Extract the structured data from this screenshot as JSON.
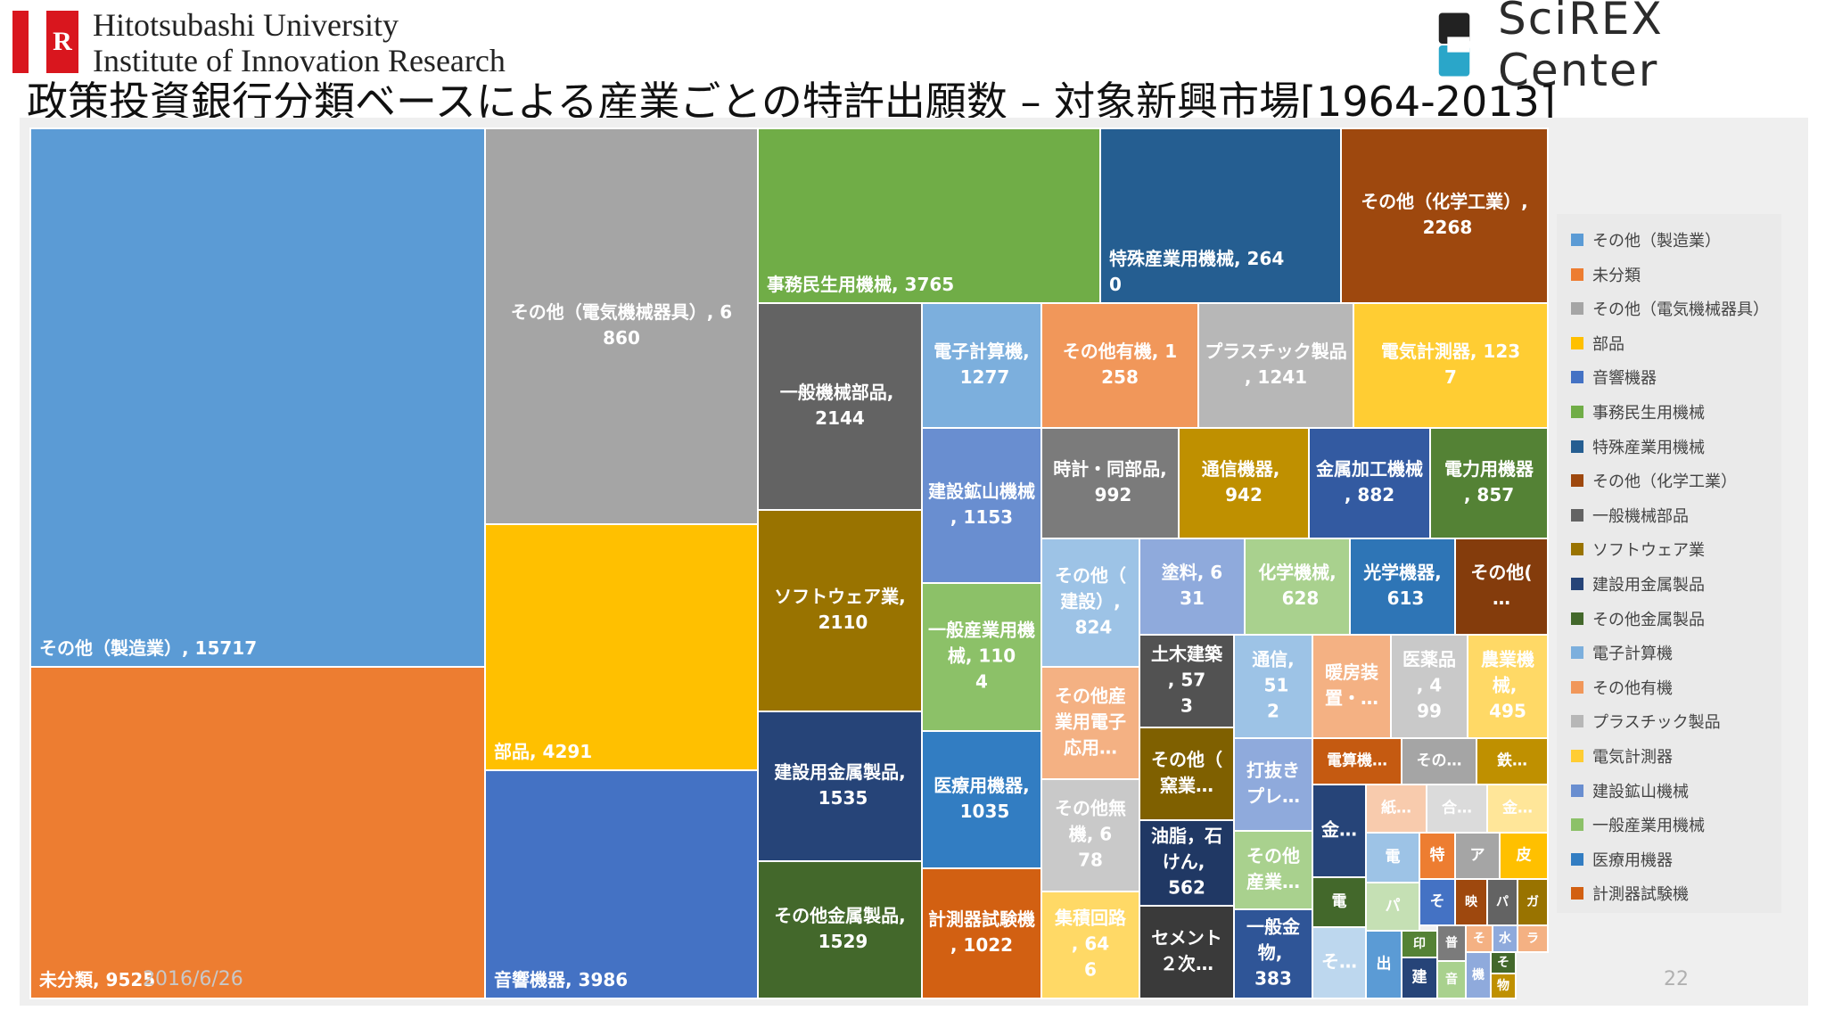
{
  "header": {
    "university_line1": "Hitotsubashi University",
    "university_line2": "Institute of Innovation Research",
    "center_name": "SciREX Center",
    "logo_letter": "R"
  },
  "slide": {
    "title": "政策投資銀行分類ベースによる産業ごとの特許出願数 – 対象新興市場[1964-2013]",
    "date": "2016/6/26",
    "page_number": "22"
  },
  "colors": {
    "background": "#efefef",
    "accent_red": "#d9161e"
  },
  "chart_data": {
    "type": "treemap",
    "legend_position": "right",
    "legend": [
      {
        "name": "その他（製造業）",
        "color": "#5b9bd5"
      },
      {
        "name": "未分類",
        "color": "#ed7d31"
      },
      {
        "name": "その他（電気機械器具）",
        "color": "#a5a5a5"
      },
      {
        "name": "部品",
        "color": "#ffc000"
      },
      {
        "name": "音響機器",
        "color": "#4472c4"
      },
      {
        "name": "事務民生用機械",
        "color": "#70ad47"
      },
      {
        "name": "特殊産業用機械",
        "color": "#255e91"
      },
      {
        "name": "その他（化学工業）",
        "color": "#9e480e"
      },
      {
        "name": "一般機械部品",
        "color": "#636363"
      },
      {
        "name": "ソフトウェア業",
        "color": "#997300"
      },
      {
        "name": "建設用金属製品",
        "color": "#264478"
      },
      {
        "name": "その他金属製品",
        "color": "#43682b"
      },
      {
        "name": "電子計算機",
        "color": "#7cafdd"
      },
      {
        "name": "その他有機",
        "color": "#f1975a"
      },
      {
        "name": "プラスチック製品",
        "color": "#b7b7b7"
      },
      {
        "name": "電気計測器",
        "color": "#ffcd33"
      },
      {
        "name": "建設鉱山機械",
        "color": "#698ed0"
      },
      {
        "name": "一般産業用機械",
        "color": "#8cc168"
      },
      {
        "name": "医療用機器",
        "color": "#327dc2"
      },
      {
        "name": "計測器試験機",
        "color": "#d26012"
      }
    ],
    "tiles": [
      {
        "label": "その他（製造業）, 15717",
        "value": 15717,
        "color": "#5b9bd5"
      },
      {
        "label": "未分類, 9525",
        "value": 9525,
        "color": "#ed7d31"
      },
      {
        "label": "その他（電気機械器具）, 6860",
        "value": 6860,
        "color": "#a5a5a5"
      },
      {
        "label": "部品, 4291",
        "value": 4291,
        "color": "#ffc000"
      },
      {
        "label": "音響機器, 3986",
        "value": 3986,
        "color": "#4472c4"
      },
      {
        "label": "事務民生用機械, 3765",
        "value": 3765,
        "color": "#70ad47"
      },
      {
        "label": "特殊産業用機械, 2640",
        "value": 2640,
        "color": "#255e91"
      },
      {
        "label": "その他（化学工業）, 2268",
        "value": 2268,
        "color": "#9e480e"
      },
      {
        "label": "一般機械部品, 2144",
        "value": 2144,
        "color": "#636363"
      },
      {
        "label": "ソフトウェア業, 2110",
        "value": 2110,
        "color": "#997300"
      },
      {
        "label": "建設用金属製品, 1535",
        "value": 1535,
        "color": "#264478"
      },
      {
        "label": "その他金属製品, 1529",
        "value": 1529,
        "color": "#43682b"
      },
      {
        "label": "電子計算機, 1277",
        "value": 1277,
        "color": "#7cafdd"
      },
      {
        "label": "建設鉱山機械, 1153",
        "value": 1153,
        "color": "#698ed0"
      },
      {
        "label": "一般産業用機械, 1104",
        "value": 1104,
        "color": "#8cc168"
      },
      {
        "label": "医療用機器, 1035",
        "value": 1035,
        "color": "#327dc2"
      },
      {
        "label": "計測器試験機, 1022",
        "value": 1022,
        "color": "#d26012"
      },
      {
        "label": "その他有機, 1258",
        "value": 1258,
        "color": "#f1975a"
      },
      {
        "label": "プラスチック製品, 1241",
        "value": 1241,
        "color": "#b7b7b7"
      },
      {
        "label": "電気計測器, 1237",
        "value": 1237,
        "color": "#ffcd33"
      },
      {
        "label": "時計・同部品, 992",
        "value": 992,
        "color": "#7b7b7b"
      },
      {
        "label": "通信機器, 942",
        "value": 942,
        "color": "#bf9000"
      },
      {
        "label": "金属加工機械, 882",
        "value": 882,
        "color": "#335aa1"
      },
      {
        "label": "電力用機器, 857",
        "value": 857,
        "color": "#548235"
      },
      {
        "label": "その他（建設）, 824",
        "value": 824,
        "color": "#9dc3e6"
      },
      {
        "label": "塗料, 631",
        "value": 631,
        "color": "#8faadc"
      },
      {
        "label": "化学機械, 628",
        "value": 628,
        "color": "#a9d18e"
      },
      {
        "label": "光学機器, 613",
        "value": 613,
        "color": "#2e75b6"
      },
      {
        "label": "その他(…",
        "value": null,
        "color": "#843c0c"
      },
      {
        "label": "その他産業用電子応用…",
        "value": null,
        "color": "#f4b183"
      },
      {
        "label": "土木建築, 573",
        "value": 573,
        "color": "#525252"
      },
      {
        "label": "通信, 512",
        "value": 512,
        "color": "#9dc3e6"
      },
      {
        "label": "暖房装置・…",
        "value": null,
        "color": "#f4b183"
      },
      {
        "label": "医薬品, 499",
        "value": 499,
        "color": "#c9c9c9"
      },
      {
        "label": "農業機械, 495",
        "value": 495,
        "color": "#ffd966"
      },
      {
        "label": "その他無機, 678",
        "value": 678,
        "color": "#c9c9c9"
      },
      {
        "label": "その他（窯業…",
        "value": null,
        "color": "#7f6000"
      },
      {
        "label": "打抜きプレ…",
        "value": null,
        "color": "#8faadc"
      },
      {
        "label": "電算機…",
        "value": null,
        "color": "#c55a11"
      },
      {
        "label": "その…",
        "value": null,
        "color": "#a5a5a5"
      },
      {
        "label": "鉄…",
        "value": null,
        "color": "#bf9000"
      },
      {
        "label": "集積回路, 646",
        "value": 646,
        "color": "#ffd966"
      },
      {
        "label": "油脂，石けん, 562",
        "value": 562,
        "color": "#203864"
      },
      {
        "label": "その他産業…",
        "value": null,
        "color": "#a9d18e"
      },
      {
        "label": "金…",
        "value": null,
        "color": "#264478"
      },
      {
        "label": "紙…",
        "value": null,
        "color": "#f8cbad"
      },
      {
        "label": "合…",
        "value": null,
        "color": "#dbdbdb"
      },
      {
        "label": "金…",
        "value": null,
        "color": "#ffe699"
      },
      {
        "label": "電",
        "value": null,
        "color": "#43682b"
      },
      {
        "label": "電",
        "value": null,
        "color": "#9dc3e6"
      },
      {
        "label": "特",
        "value": null,
        "color": "#ed7d31"
      },
      {
        "label": "ア",
        "value": null,
        "color": "#a5a5a5"
      },
      {
        "label": "皮",
        "value": null,
        "color": "#ffc000"
      },
      {
        "label": "パ",
        "value": null,
        "color": "#c5e0b4"
      },
      {
        "label": "そ",
        "value": null,
        "color": "#4472c4"
      },
      {
        "label": "映",
        "value": null,
        "color": "#9e480e"
      },
      {
        "label": "パ",
        "value": null,
        "color": "#636363"
      },
      {
        "label": "ガ",
        "value": null,
        "color": "#997300"
      },
      {
        "label": "セメント２次…",
        "value": null,
        "color": "#3a3a3a"
      },
      {
        "label": "一般金物, 383",
        "value": 383,
        "color": "#2f5597"
      },
      {
        "label": "そ…",
        "value": null,
        "color": "#bdd7ee"
      },
      {
        "label": "出",
        "value": null,
        "color": "#5b9bd5"
      },
      {
        "label": "印",
        "value": null,
        "color": "#548235"
      },
      {
        "label": "普",
        "value": null,
        "color": "#7b7b7b"
      },
      {
        "label": "そ",
        "value": null,
        "color": "#f4b183"
      },
      {
        "label": "水",
        "value": null,
        "color": "#8faadc"
      },
      {
        "label": "ラ",
        "value": null,
        "color": "#f4b183"
      },
      {
        "label": "建",
        "value": null,
        "color": "#264478"
      },
      {
        "label": "音",
        "value": null,
        "color": "#a9d18e"
      },
      {
        "label": "機",
        "value": null,
        "color": "#8faadc"
      },
      {
        "label": "そ",
        "value": null,
        "color": "#43682b"
      },
      {
        "label": "物",
        "value": null,
        "color": "#bf9000"
      }
    ]
  }
}
